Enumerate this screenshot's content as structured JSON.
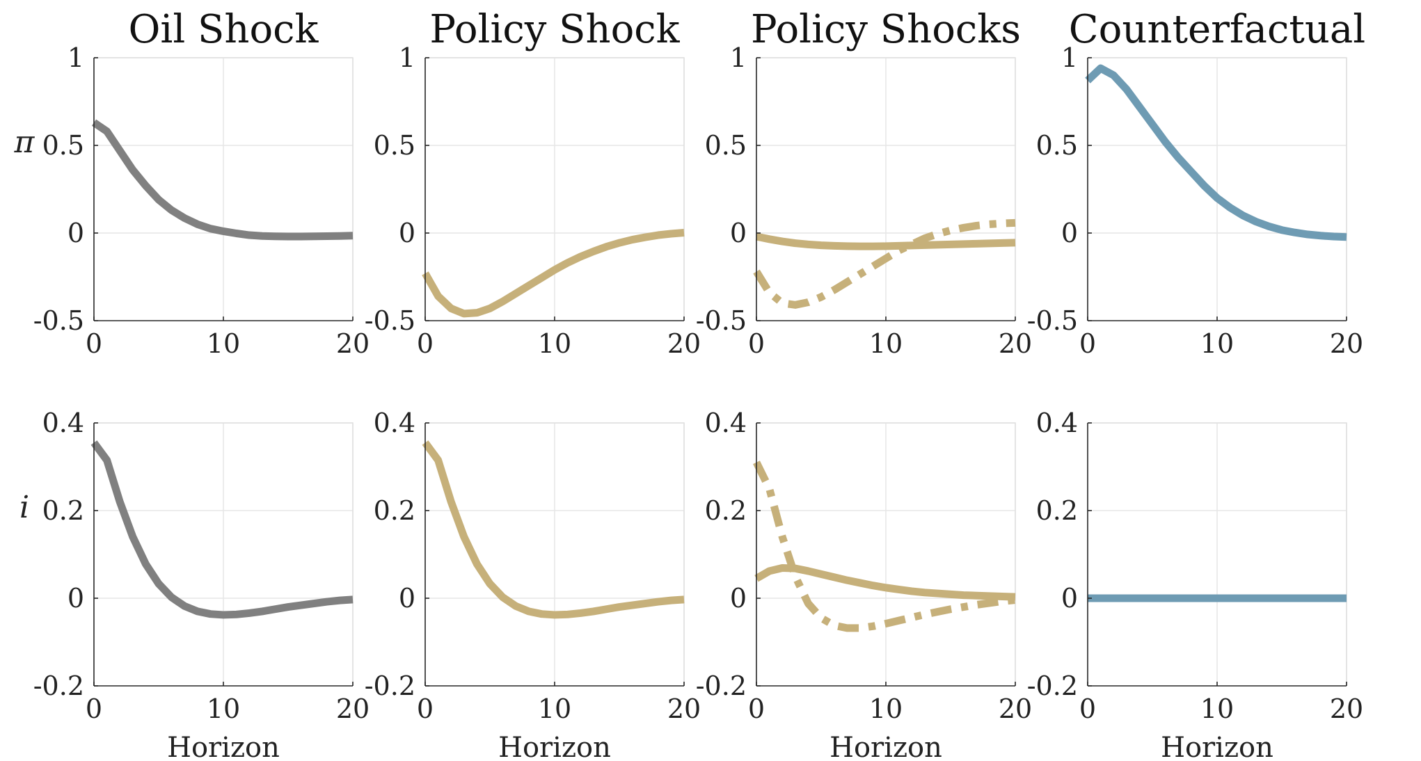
{
  "colors": {
    "oil": "#808080",
    "policy": "#C6B07A",
    "counterfactual": "#6E9BB3"
  },
  "chart_data": [
    {
      "type": "line",
      "title": "Oil Shock",
      "ylabel": "π",
      "xlabel": "",
      "xlim": [
        0,
        20
      ],
      "ylim": [
        -0.5,
        1
      ],
      "xticks": [
        "0",
        "10",
        "20"
      ],
      "yticks": [
        "-0.5",
        "0",
        "0.5",
        "1"
      ],
      "grid": true,
      "series": [
        {
          "style": "solid",
          "color": "#808080",
          "x": [
            0,
            1,
            2,
            3,
            4,
            5,
            6,
            7,
            8,
            9,
            10,
            11,
            12,
            13,
            14,
            15,
            16,
            17,
            18,
            19,
            20
          ],
          "y": [
            0.63,
            0.58,
            0.47,
            0.36,
            0.27,
            0.19,
            0.13,
            0.085,
            0.05,
            0.025,
            0.01,
            -0.002,
            -0.012,
            -0.017,
            -0.019,
            -0.02,
            -0.02,
            -0.019,
            -0.018,
            -0.017,
            -0.015
          ]
        }
      ]
    },
    {
      "type": "line",
      "title": "Policy Shock",
      "ylabel": "",
      "xlabel": "",
      "xlim": [
        0,
        20
      ],
      "ylim": [
        -0.5,
        1
      ],
      "xticks": [
        "0",
        "10",
        "20"
      ],
      "yticks": [
        "-0.5",
        "0",
        "0.5",
        "1"
      ],
      "grid": true,
      "series": [
        {
          "style": "solid",
          "color": "#C6B07A",
          "x": [
            0,
            1,
            2,
            3,
            4,
            5,
            6,
            7,
            8,
            9,
            10,
            11,
            12,
            13,
            14,
            15,
            16,
            17,
            18,
            19,
            20
          ],
          "y": [
            -0.23,
            -0.36,
            -0.43,
            -0.46,
            -0.455,
            -0.43,
            -0.39,
            -0.345,
            -0.3,
            -0.255,
            -0.21,
            -0.17,
            -0.135,
            -0.105,
            -0.078,
            -0.056,
            -0.038,
            -0.024,
            -0.012,
            -0.004,
            0.002
          ]
        }
      ]
    },
    {
      "type": "line",
      "title": "Policy Shocks",
      "ylabel": "",
      "xlabel": "",
      "xlim": [
        0,
        20
      ],
      "ylim": [
        -0.5,
        1
      ],
      "xticks": [
        "0",
        "10",
        "20"
      ],
      "yticks": [
        "-0.5",
        "0",
        "0.5",
        "1"
      ],
      "grid": true,
      "series": [
        {
          "style": "solid",
          "color": "#C6B07A",
          "x": [
            0,
            1,
            2,
            3,
            4,
            5,
            6,
            7,
            8,
            9,
            10,
            11,
            12,
            13,
            14,
            15,
            16,
            17,
            18,
            19,
            20
          ],
          "y": [
            -0.02,
            -0.035,
            -0.048,
            -0.058,
            -0.065,
            -0.07,
            -0.073,
            -0.075,
            -0.076,
            -0.076,
            -0.075,
            -0.073,
            -0.071,
            -0.069,
            -0.067,
            -0.065,
            -0.063,
            -0.061,
            -0.059,
            -0.057,
            -0.055
          ]
        },
        {
          "style": "dashdot",
          "color": "#C6B07A",
          "x": [
            0,
            1,
            2,
            3,
            4,
            5,
            6,
            7,
            8,
            9,
            10,
            11,
            12,
            13,
            14,
            15,
            16,
            17,
            18,
            19,
            20
          ],
          "y": [
            -0.22,
            -0.34,
            -0.4,
            -0.41,
            -0.395,
            -0.365,
            -0.325,
            -0.28,
            -0.235,
            -0.19,
            -0.145,
            -0.1,
            -0.065,
            -0.03,
            -0.005,
            0.015,
            0.03,
            0.042,
            0.05,
            0.055,
            0.058
          ]
        }
      ]
    },
    {
      "type": "line",
      "title": "Counterfactual",
      "ylabel": "",
      "xlabel": "",
      "xlim": [
        0,
        20
      ],
      "ylim": [
        -0.5,
        1
      ],
      "xticks": [
        "0",
        "10",
        "20"
      ],
      "yticks": [
        "-0.5",
        "0",
        "0.5",
        "1"
      ],
      "grid": true,
      "series": [
        {
          "style": "solid",
          "color": "#6E9BB3",
          "x": [
            0,
            1,
            2,
            3,
            4,
            5,
            6,
            7,
            8,
            9,
            10,
            11,
            12,
            13,
            14,
            15,
            16,
            17,
            18,
            19,
            20
          ],
          "y": [
            0.87,
            0.94,
            0.9,
            0.82,
            0.72,
            0.62,
            0.52,
            0.43,
            0.35,
            0.27,
            0.2,
            0.145,
            0.1,
            0.065,
            0.038,
            0.017,
            0.003,
            -0.008,
            -0.015,
            -0.02,
            -0.023
          ]
        }
      ]
    },
    {
      "type": "line",
      "title": "",
      "ylabel": "i",
      "xlabel": "Horizon",
      "xlim": [
        0,
        20
      ],
      "ylim": [
        -0.2,
        0.4
      ],
      "xticks": [
        "0",
        "10",
        "20"
      ],
      "yticks": [
        "-0.2",
        "0",
        "0.2",
        "0.4"
      ],
      "grid": true,
      "series": [
        {
          "style": "solid",
          "color": "#808080",
          "x": [
            0,
            1,
            2,
            3,
            4,
            5,
            6,
            7,
            8,
            9,
            10,
            11,
            12,
            13,
            14,
            15,
            16,
            17,
            18,
            19,
            20
          ],
          "y": [
            0.355,
            0.315,
            0.22,
            0.14,
            0.078,
            0.033,
            0.002,
            -0.018,
            -0.03,
            -0.036,
            -0.038,
            -0.037,
            -0.034,
            -0.03,
            -0.025,
            -0.02,
            -0.016,
            -0.012,
            -0.008,
            -0.005,
            -0.003
          ]
        }
      ]
    },
    {
      "type": "line",
      "title": "",
      "ylabel": "",
      "xlabel": "Horizon",
      "xlim": [
        0,
        20
      ],
      "ylim": [
        -0.2,
        0.4
      ],
      "xticks": [
        "0",
        "10",
        "20"
      ],
      "yticks": [
        "-0.2",
        "0",
        "0.2",
        "0.4"
      ],
      "grid": true,
      "series": [
        {
          "style": "solid",
          "color": "#C6B07A",
          "x": [
            0,
            1,
            2,
            3,
            4,
            5,
            6,
            7,
            8,
            9,
            10,
            11,
            12,
            13,
            14,
            15,
            16,
            17,
            18,
            19,
            20
          ],
          "y": [
            0.355,
            0.315,
            0.22,
            0.14,
            0.078,
            0.033,
            0.002,
            -0.018,
            -0.03,
            -0.036,
            -0.038,
            -0.037,
            -0.034,
            -0.03,
            -0.025,
            -0.02,
            -0.016,
            -0.012,
            -0.008,
            -0.005,
            -0.003
          ]
        }
      ]
    },
    {
      "type": "line",
      "title": "",
      "ylabel": "",
      "xlabel": "Horizon",
      "xlim": [
        0,
        20
      ],
      "ylim": [
        -0.2,
        0.4
      ],
      "xticks": [
        "0",
        "10",
        "20"
      ],
      "yticks": [
        "-0.2",
        "0",
        "0.2",
        "0.4"
      ],
      "grid": true,
      "series": [
        {
          "style": "solid",
          "color": "#C6B07A",
          "x": [
            0,
            1,
            2,
            3,
            4,
            5,
            6,
            7,
            8,
            9,
            10,
            11,
            12,
            13,
            14,
            15,
            16,
            17,
            18,
            19,
            20
          ],
          "y": [
            0.045,
            0.062,
            0.069,
            0.068,
            0.062,
            0.055,
            0.048,
            0.041,
            0.035,
            0.029,
            0.024,
            0.02,
            0.016,
            0.013,
            0.011,
            0.009,
            0.007,
            0.006,
            0.005,
            0.004,
            0.003
          ]
        },
        {
          "style": "dashdot",
          "color": "#C6B07A",
          "x": [
            0,
            1,
            2,
            3,
            4,
            5,
            6,
            7,
            8,
            9,
            10,
            11,
            12,
            13,
            14,
            15,
            16,
            17,
            18,
            19,
            20
          ],
          "y": [
            0.31,
            0.25,
            0.14,
            0.05,
            -0.012,
            -0.045,
            -0.062,
            -0.068,
            -0.068,
            -0.064,
            -0.058,
            -0.051,
            -0.044,
            -0.037,
            -0.031,
            -0.025,
            -0.02,
            -0.015,
            -0.011,
            -0.007,
            -0.004
          ]
        }
      ]
    },
    {
      "type": "line",
      "title": "",
      "ylabel": "",
      "xlabel": "Horizon",
      "xlim": [
        0,
        20
      ],
      "ylim": [
        -0.2,
        0.4
      ],
      "xticks": [
        "0",
        "10",
        "20"
      ],
      "yticks": [
        "-0.2",
        "0",
        "0.2",
        "0.4"
      ],
      "grid": true,
      "series": [
        {
          "style": "solid",
          "color": "#6E9BB3",
          "x": [
            0,
            1,
            2,
            3,
            4,
            5,
            6,
            7,
            8,
            9,
            10,
            11,
            12,
            13,
            14,
            15,
            16,
            17,
            18,
            19,
            20
          ],
          "y": [
            0,
            0,
            0,
            0,
            0,
            0,
            0,
            0,
            0,
            0,
            0,
            0,
            0,
            0,
            0,
            0,
            0,
            0,
            0,
            0,
            0
          ]
        }
      ]
    }
  ]
}
